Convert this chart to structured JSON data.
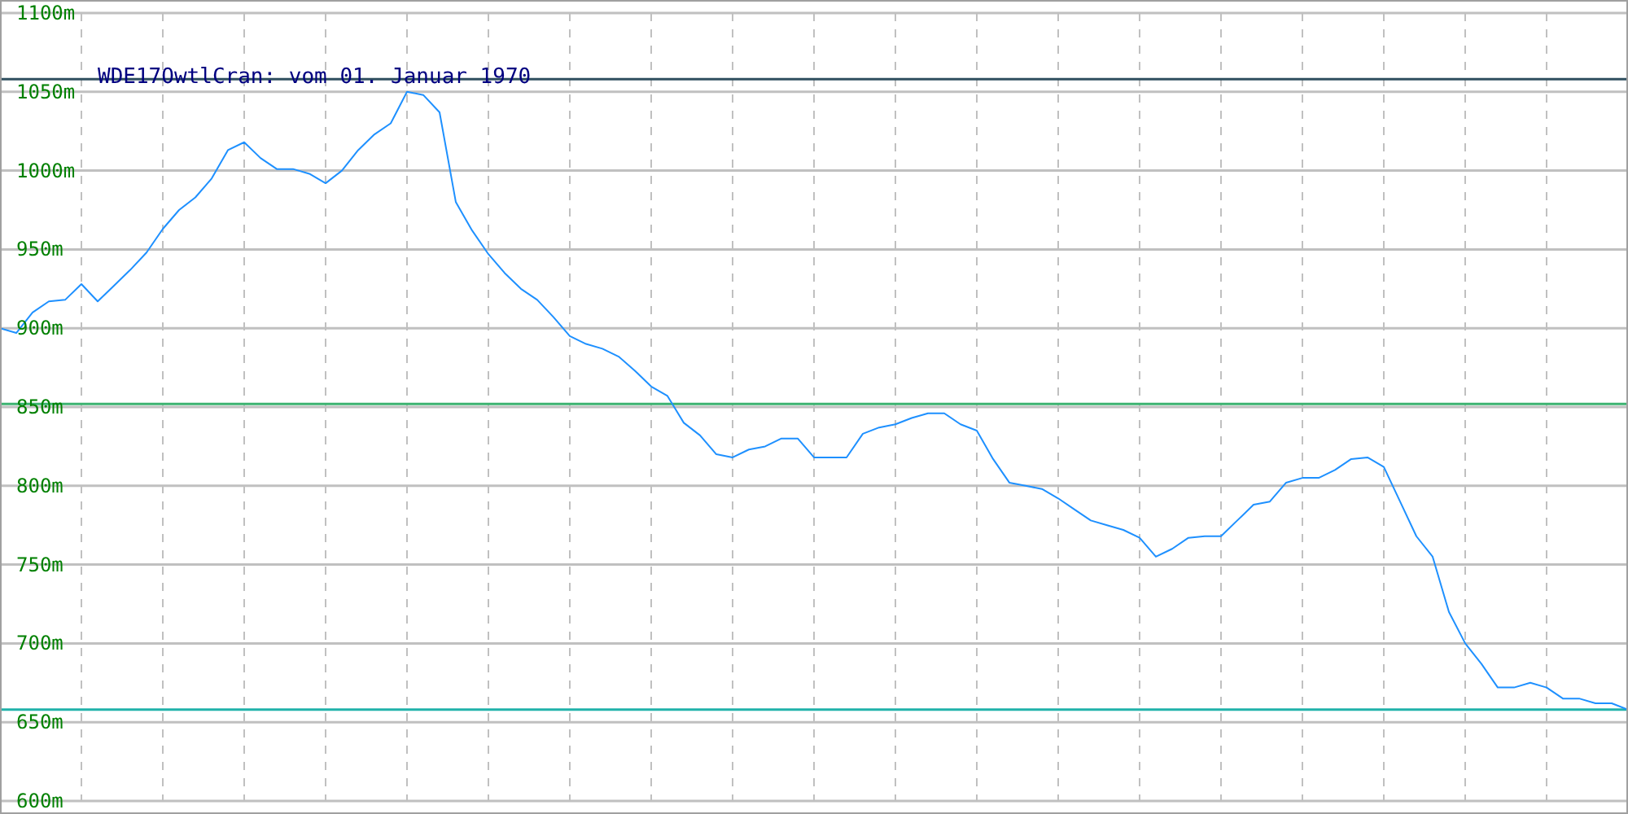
{
  "chart_data": {
    "type": "line",
    "title": "WDE17OwtlCran: vom 01. Januar 1970",
    "categories": [
      null,
      null,
      null,
      null,
      null,
      null,
      null,
      null,
      null,
      null,
      null,
      null,
      null,
      null,
      null,
      null,
      null,
      null,
      null,
      null,
      null,
      null,
      null,
      null,
      null,
      null,
      null,
      null,
      null,
      null,
      null,
      null,
      null,
      null,
      null,
      null,
      null,
      null,
      null,
      null,
      null,
      null,
      null,
      null,
      null,
      null,
      null,
      null,
      null,
      null,
      null,
      null,
      null,
      null,
      null,
      null,
      null,
      null,
      null,
      null,
      null,
      null,
      null,
      null,
      null,
      null,
      null,
      null,
      null,
      null,
      null,
      null,
      null,
      null,
      null,
      null,
      null,
      null,
      null,
      null,
      null,
      null,
      null,
      null,
      null,
      null,
      null,
      null,
      null,
      null,
      null,
      null,
      null,
      null,
      null,
      null,
      null,
      null,
      null,
      null,
      null
    ],
    "series": [
      {
        "color": "#1e90ff",
        "values": [
          900,
          897,
          910,
          917,
          918,
          928,
          917,
          927,
          937,
          948,
          963,
          975,
          983,
          995,
          1013,
          1018,
          1008,
          1001,
          1001,
          998,
          992,
          1000,
          1013,
          1023,
          1030,
          1050,
          1048,
          1037,
          980,
          962,
          947,
          935,
          925,
          918,
          907,
          895,
          890,
          887,
          882,
          873,
          863,
          857,
          840,
          832,
          820,
          818,
          823,
          825,
          830,
          830,
          818,
          818,
          818,
          833,
          837,
          839,
          843,
          846,
          846,
          839,
          835,
          817,
          802,
          800,
          798,
          792,
          785,
          778,
          775,
          772,
          767,
          755,
          760,
          767,
          768,
          768,
          778,
          788,
          790,
          802,
          805,
          805,
          810,
          817,
          818,
          812,
          790,
          768,
          755,
          720,
          700,
          687,
          672,
          672,
          675,
          672,
          665,
          665,
          662,
          662,
          658
        ]
      }
    ],
    "ylim": [
      600,
      1100
    ],
    "yticks": [
      {
        "value": 600,
        "label": "600m"
      },
      {
        "value": 650,
        "label": "650m"
      },
      {
        "value": 700,
        "label": "700m"
      },
      {
        "value": 750,
        "label": "750m"
      },
      {
        "value": 800,
        "label": "800m"
      },
      {
        "value": 850,
        "label": "850m"
      },
      {
        "value": 900,
        "label": "900m"
      },
      {
        "value": 950,
        "label": "950m"
      },
      {
        "value": 1000,
        "label": "1000m"
      },
      {
        "value": 1050,
        "label": "1050m"
      },
      {
        "value": 1100,
        "label": "1100m"
      }
    ],
    "tick_labels": "y",
    "grid": true,
    "marker": "none",
    "line_style": "solid",
    "ref_lines": [
      {
        "axis": "y",
        "value": 1058,
        "color": "#2f4f5f"
      },
      {
        "axis": "y",
        "value": 852,
        "color": "#3cb371"
      },
      {
        "axis": "y",
        "value": 658,
        "color": "#20b2aa"
      }
    ]
  }
}
